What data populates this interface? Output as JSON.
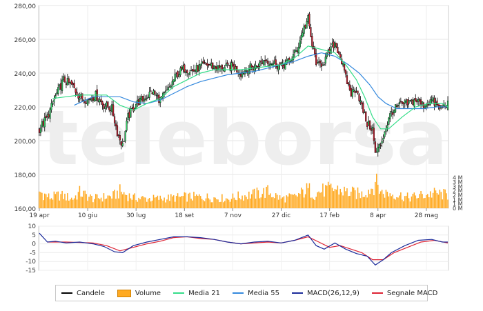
{
  "chart_data": [
    {
      "type": "candlestick",
      "title": "",
      "y_axis": {
        "min": 160,
        "max": 280,
        "ticks": [
          "160,00",
          "180,00",
          "200,00",
          "220,00",
          "240,00",
          "260,00",
          "280,00"
        ]
      },
      "volume_axis": {
        "ticks": [
          "0 M",
          "1 M",
          "1 M",
          "2 M",
          "2 M",
          "3 M",
          "3 M",
          "4 M"
        ]
      },
      "x_axis": {
        "ticks": [
          "19 apr",
          "10 giu",
          "30 lug",
          "18 set",
          "7 nov",
          "27 dic",
          "17 feb",
          "8 apr",
          "28 mag"
        ]
      },
      "watermark": "teleborsa",
      "close_anchors": [
        [
          0,
          207
        ],
        [
          6,
          214
        ],
        [
          12,
          226
        ],
        [
          18,
          236
        ],
        [
          24,
          233
        ],
        [
          30,
          226
        ],
        [
          36,
          224
        ],
        [
          42,
          227
        ],
        [
          48,
          221
        ],
        [
          54,
          219
        ],
        [
          58,
          205
        ],
        [
          62,
          197
        ],
        [
          66,
          214
        ],
        [
          72,
          222
        ],
        [
          78,
          225
        ],
        [
          84,
          229
        ],
        [
          90,
          224
        ],
        [
          96,
          230
        ],
        [
          102,
          239
        ],
        [
          108,
          243
        ],
        [
          114,
          241
        ],
        [
          120,
          244
        ],
        [
          126,
          245
        ],
        [
          132,
          243
        ],
        [
          138,
          243
        ],
        [
          144,
          244
        ],
        [
          150,
          240
        ],
        [
          156,
          243
        ],
        [
          162,
          244
        ],
        [
          168,
          248
        ],
        [
          174,
          246
        ],
        [
          180,
          244
        ],
        [
          186,
          247
        ],
        [
          192,
          254
        ],
        [
          196,
          265
        ],
        [
          200,
          272
        ],
        [
          203,
          256
        ],
        [
          207,
          244
        ],
        [
          212,
          247
        ],
        [
          216,
          253
        ],
        [
          220,
          258
        ],
        [
          224,
          250
        ],
        [
          228,
          237
        ],
        [
          232,
          228
        ],
        [
          236,
          231
        ],
        [
          240,
          220
        ],
        [
          244,
          210
        ],
        [
          248,
          207
        ],
        [
          250,
          192
        ],
        [
          254,
          198
        ],
        [
          258,
          208
        ],
        [
          262,
          217
        ],
        [
          268,
          221
        ],
        [
          274,
          222
        ],
        [
          280,
          224
        ],
        [
          286,
          221
        ],
        [
          292,
          224
        ],
        [
          298,
          219
        ],
        [
          304,
          222
        ]
      ],
      "ma21": [
        [
          10,
          225
        ],
        [
          30,
          227
        ],
        [
          50,
          227
        ],
        [
          60,
          221
        ],
        [
          70,
          218
        ],
        [
          80,
          222
        ],
        [
          90,
          225
        ],
        [
          100,
          232
        ],
        [
          110,
          236
        ],
        [
          120,
          240
        ],
        [
          130,
          242
        ],
        [
          140,
          242
        ],
        [
          150,
          242
        ],
        [
          160,
          243
        ],
        [
          170,
          244
        ],
        [
          180,
          245
        ],
        [
          190,
          249
        ],
        [
          200,
          256
        ],
        [
          210,
          254
        ],
        [
          220,
          252
        ],
        [
          228,
          245
        ],
        [
          236,
          236
        ],
        [
          242,
          226
        ],
        [
          248,
          214
        ],
        [
          254,
          207
        ],
        [
          260,
          207
        ],
        [
          270,
          214
        ],
        [
          280,
          220
        ],
        [
          290,
          222
        ],
        [
          300,
          222
        ],
        [
          304,
          220
        ]
      ],
      "ma55": [
        [
          26,
          221
        ],
        [
          40,
          226
        ],
        [
          60,
          226
        ],
        [
          70,
          223
        ],
        [
          80,
          222
        ],
        [
          90,
          224
        ],
        [
          100,
          228
        ],
        [
          110,
          232
        ],
        [
          120,
          235
        ],
        [
          130,
          237
        ],
        [
          140,
          239
        ],
        [
          150,
          240
        ],
        [
          160,
          241
        ],
        [
          170,
          243
        ],
        [
          180,
          245
        ],
        [
          190,
          247
        ],
        [
          200,
          250
        ],
        [
          210,
          252
        ],
        [
          220,
          250
        ],
        [
          230,
          245
        ],
        [
          238,
          240
        ],
        [
          246,
          233
        ],
        [
          252,
          226
        ],
        [
          258,
          222
        ],
        [
          266,
          219
        ],
        [
          276,
          219
        ],
        [
          286,
          219
        ],
        [
          296,
          220
        ],
        [
          304,
          220
        ]
      ],
      "volume_anchors": [
        [
          0,
          1.9
        ],
        [
          8,
          1.2
        ],
        [
          15,
          1.5
        ],
        [
          25,
          1.1
        ],
        [
          30,
          1.8
        ],
        [
          40,
          1.1
        ],
        [
          55,
          1.4
        ],
        [
          60,
          1.9
        ],
        [
          70,
          1.2
        ],
        [
          80,
          1.1
        ],
        [
          90,
          1.1
        ],
        [
          100,
          1.2
        ],
        [
          110,
          1.3
        ],
        [
          120,
          1.3
        ],
        [
          130,
          1.2
        ],
        [
          140,
          1.1
        ],
        [
          150,
          1.4
        ],
        [
          160,
          1.6
        ],
        [
          170,
          1.9
        ],
        [
          180,
          1.1
        ],
        [
          190,
          1.3
        ],
        [
          196,
          1.8
        ],
        [
          200,
          2.2
        ],
        [
          205,
          1.6
        ],
        [
          210,
          2.0
        ],
        [
          220,
          2.2
        ],
        [
          230,
          1.8
        ],
        [
          240,
          1.6
        ],
        [
          248,
          2.4
        ],
        [
          250,
          3.0
        ],
        [
          255,
          1.8
        ],
        [
          265,
          1.6
        ],
        [
          275,
          1.2
        ],
        [
          285,
          1.5
        ],
        [
          295,
          1.7
        ],
        [
          304,
          1.5
        ]
      ],
      "candle_color": "#000000",
      "bull_color": "#33cc66",
      "bear_color": "#cc2233",
      "ma21_color": "#33dd88",
      "ma55_color": "#3388dd",
      "volume_color": "#ffaa22"
    },
    {
      "type": "line",
      "title": "",
      "y_axis": {
        "min": -15,
        "max": 10,
        "ticks": [
          "10",
          "5",
          "0",
          "-5",
          "-10",
          "-15"
        ]
      },
      "macd": [
        [
          0,
          6
        ],
        [
          6,
          1
        ],
        [
          12,
          1.5
        ],
        [
          20,
          0.5
        ],
        [
          30,
          1
        ],
        [
          40,
          0
        ],
        [
          48,
          -1.5
        ],
        [
          56,
          -4.5
        ],
        [
          62,
          -5
        ],
        [
          70,
          -1
        ],
        [
          80,
          1
        ],
        [
          90,
          2.5
        ],
        [
          100,
          4
        ],
        [
          110,
          4
        ],
        [
          120,
          3.5
        ],
        [
          130,
          2.5
        ],
        [
          140,
          1
        ],
        [
          150,
          0
        ],
        [
          160,
          1
        ],
        [
          170,
          1.5
        ],
        [
          180,
          0.5
        ],
        [
          190,
          2
        ],
        [
          200,
          5
        ],
        [
          206,
          -1
        ],
        [
          212,
          -3
        ],
        [
          220,
          0.5
        ],
        [
          228,
          -3
        ],
        [
          236,
          -5.5
        ],
        [
          244,
          -7
        ],
        [
          250,
          -12
        ],
        [
          256,
          -9
        ],
        [
          262,
          -5
        ],
        [
          272,
          -1
        ],
        [
          282,
          2
        ],
        [
          292,
          2.5
        ],
        [
          300,
          1
        ],
        [
          304,
          1
        ]
      ],
      "signal": [
        [
          6,
          1
        ],
        [
          20,
          1
        ],
        [
          40,
          0.5
        ],
        [
          50,
          -1
        ],
        [
          60,
          -4
        ],
        [
          70,
          -2
        ],
        [
          80,
          0
        ],
        [
          90,
          1.5
        ],
        [
          100,
          3.5
        ],
        [
          110,
          4
        ],
        [
          120,
          3
        ],
        [
          130,
          2.5
        ],
        [
          140,
          1
        ],
        [
          150,
          0
        ],
        [
          160,
          0.5
        ],
        [
          170,
          1
        ],
        [
          180,
          0.5
        ],
        [
          190,
          2
        ],
        [
          200,
          4
        ],
        [
          208,
          1
        ],
        [
          216,
          -2
        ],
        [
          224,
          -1
        ],
        [
          232,
          -3
        ],
        [
          240,
          -5
        ],
        [
          248,
          -9
        ],
        [
          256,
          -9
        ],
        [
          264,
          -5
        ],
        [
          274,
          -2
        ],
        [
          284,
          1
        ],
        [
          294,
          2
        ],
        [
          304,
          0.5
        ]
      ],
      "macd_color": "#1a2a9a",
      "signal_color": "#dd2233"
    }
  ],
  "legend": {
    "items": [
      {
        "label": "Candele",
        "color": "#000000",
        "kind": "line"
      },
      {
        "label": "Volume",
        "color": "#ffaa22",
        "kind": "box"
      },
      {
        "label": "Media 21",
        "color": "#33dd88",
        "kind": "line"
      },
      {
        "label": "Media 55",
        "color": "#3388dd",
        "kind": "line"
      },
      {
        "label": "MACD(26,12,9)",
        "color": "#1a2a9a",
        "kind": "line"
      },
      {
        "label": "Segnale MACD",
        "color": "#dd2233",
        "kind": "line"
      }
    ]
  }
}
